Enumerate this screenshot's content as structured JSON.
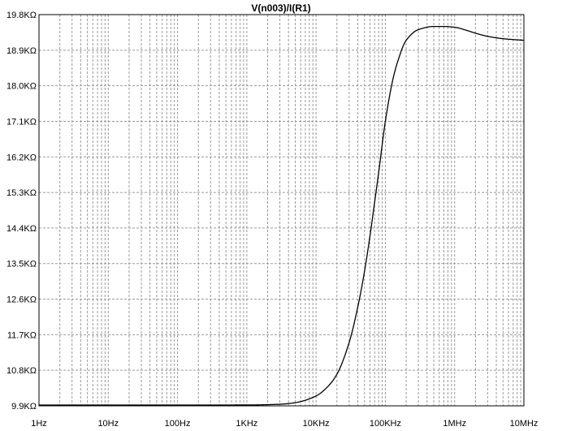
{
  "chart_data": {
    "type": "line",
    "title": "V(n003)/I(R1)",
    "xlabel": "",
    "ylabel": "",
    "x_scale": "log",
    "xlim": [
      1,
      10000000
    ],
    "ylim": [
      9900,
      19800
    ],
    "grid": true,
    "x_tick_labels": [
      "1Hz",
      "10Hz",
      "100Hz",
      "1KHz",
      "10KHz",
      "100KHz",
      "1MHz",
      "10MHz"
    ],
    "x_tick_values": [
      1,
      10,
      100,
      1000,
      10000,
      100000,
      1000000,
      10000000
    ],
    "y_tick_labels": [
      "9.9KΩ",
      "10.8KΩ",
      "11.7KΩ",
      "12.6KΩ",
      "13.5KΩ",
      "14.4KΩ",
      "15.3KΩ",
      "16.2KΩ",
      "17.1KΩ",
      "18.0KΩ",
      "18.9KΩ",
      "19.8KΩ"
    ],
    "y_tick_values": [
      9900,
      10800,
      11700,
      12600,
      13500,
      14400,
      15300,
      16200,
      17100,
      18000,
      18900,
      19800
    ],
    "series": [
      {
        "color": "#000000",
        "x": [
          1,
          10,
          100,
          1000,
          3000,
          5000,
          10000,
          15000,
          20000,
          30000,
          40000,
          50000,
          60000,
          70000,
          80000,
          100000,
          130000,
          150000,
          200000,
          300000,
          500000,
          700000,
          1000000,
          1500000,
          2000000,
          3000000,
          5000000,
          10000000
        ],
        "y": [
          9920,
          9920,
          9920,
          9922,
          9940,
          9980,
          10150,
          10400,
          10700,
          11500,
          12400,
          13300,
          14200,
          15050,
          15800,
          17100,
          18200,
          18600,
          19150,
          19420,
          19500,
          19500,
          19480,
          19400,
          19330,
          19250,
          19190,
          19150
        ]
      }
    ]
  }
}
